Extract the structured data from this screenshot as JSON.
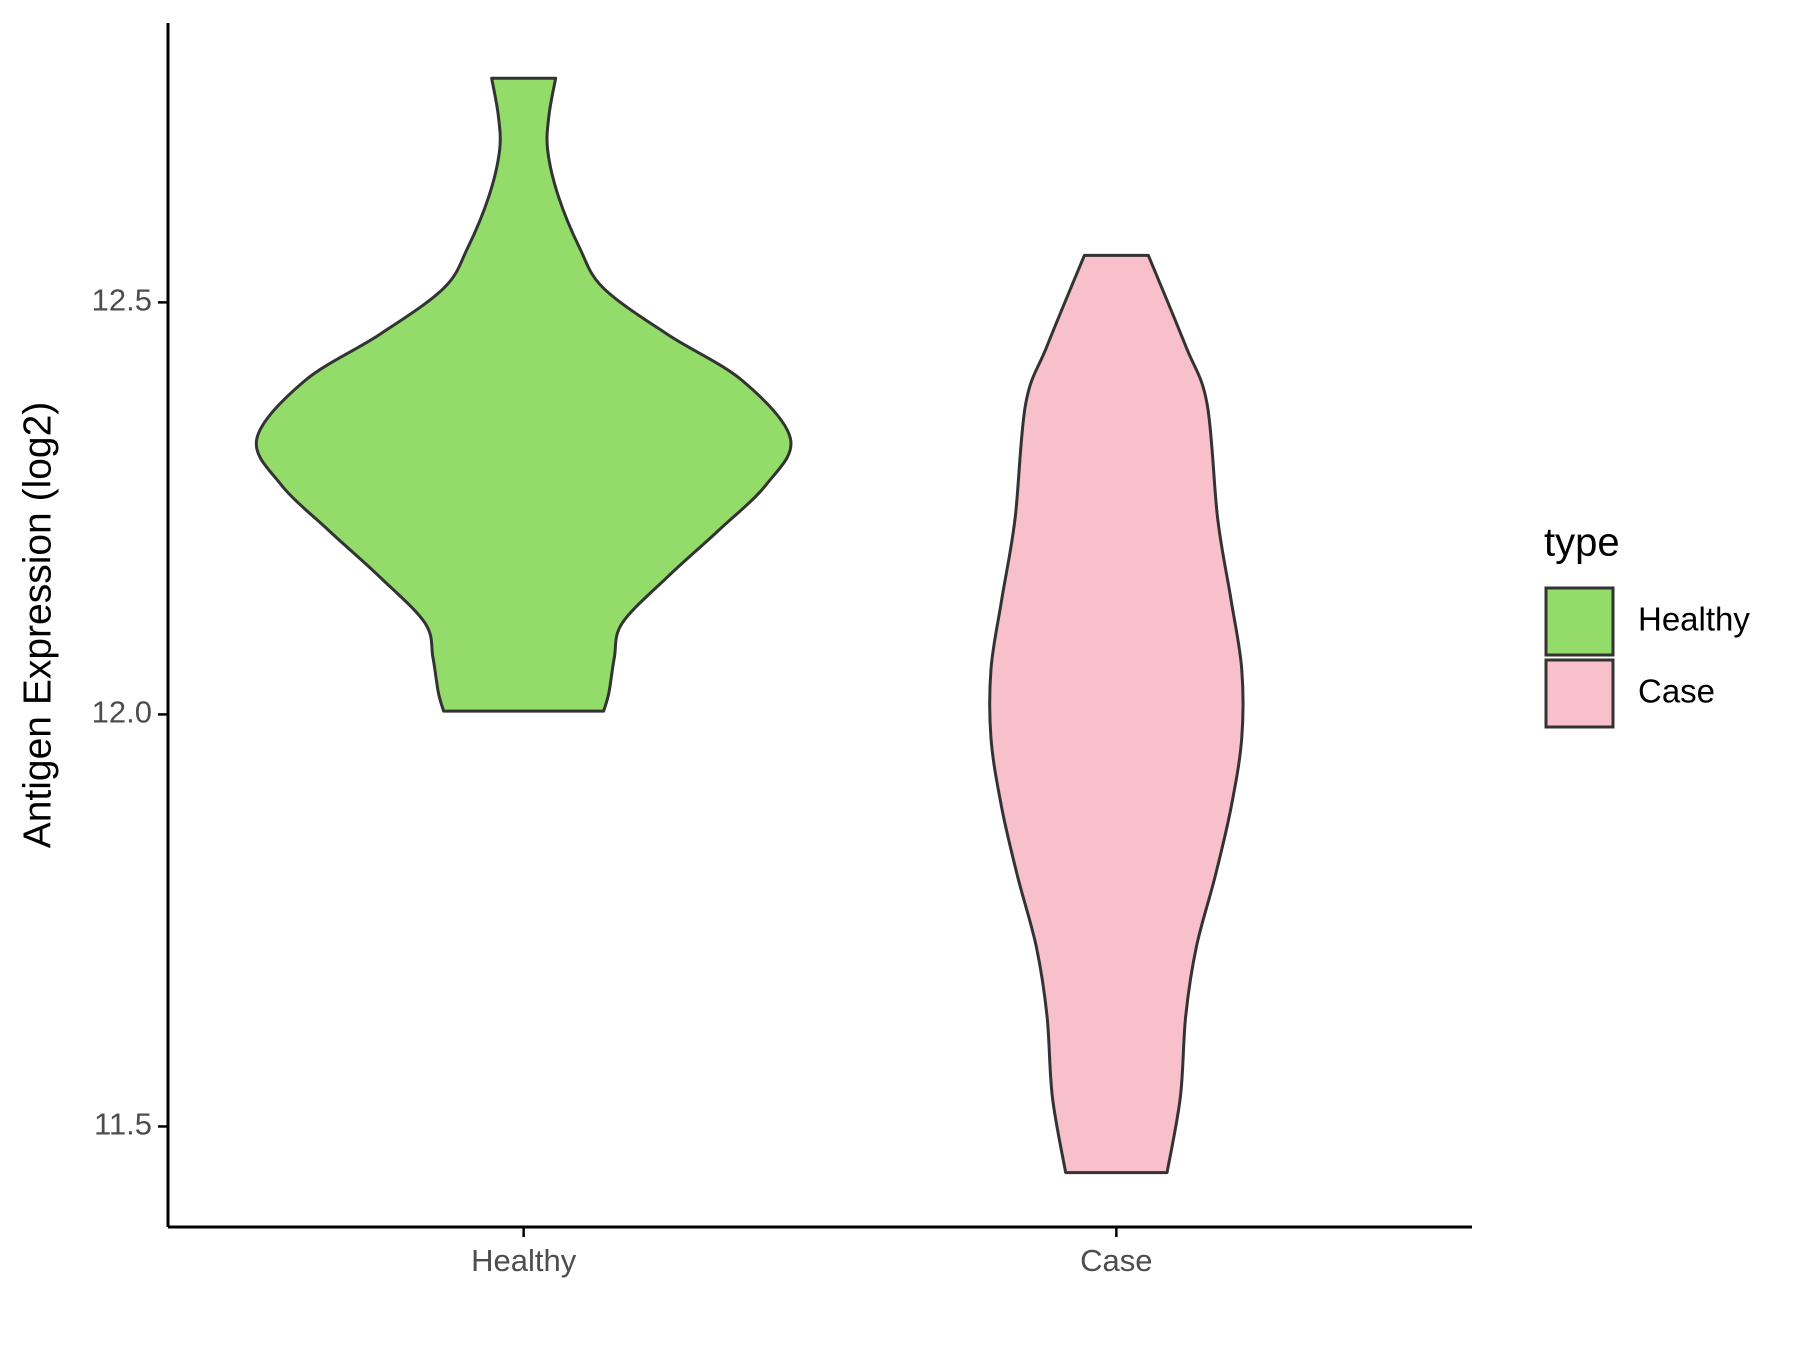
{
  "chart_data": {
    "type": "violin",
    "y_label": "Antigen Expression (log2)",
    "categories": [
      "Healthy",
      "Case"
    ],
    "ylim": [
      11.378,
      12.839
    ],
    "yticks": [
      11.5,
      {
        "value": 12,
        "label": "12.0"
      },
      12.5
    ],
    "legend_title": "type",
    "legend_position": "right",
    "outline_color": "#333333",
    "series": [
      {
        "name": "Healthy",
        "color": "#93dc6a",
        "y": [
          12.772,
          12.727,
          12.685,
          12.629,
          12.566,
          12.517,
          12.461,
          12.405,
          12.335,
          12.279,
          12.223,
          12.167,
          12.111,
          12.069,
          12.027,
          12.004
        ],
        "density": [
          0.12,
          0.095,
          0.09,
          0.13,
          0.21,
          0.3,
          0.54,
          0.82,
          1.0,
          0.91,
          0.73,
          0.54,
          0.37,
          0.34,
          0.32,
          0.3
        ]
      },
      {
        "name": "Case",
        "color": "#f7c0cb",
        "y": [
          12.557,
          12.447,
          12.377,
          12.237,
          12.139,
          12.055,
          11.971,
          11.887,
          11.803,
          11.718,
          11.634,
          11.536,
          11.444
        ],
        "density": [
          0.12,
          0.26,
          0.34,
          0.38,
          0.43,
          0.47,
          0.47,
          0.43,
          0.37,
          0.3,
          0.26,
          0.24,
          0.19
        ]
      }
    ]
  }
}
